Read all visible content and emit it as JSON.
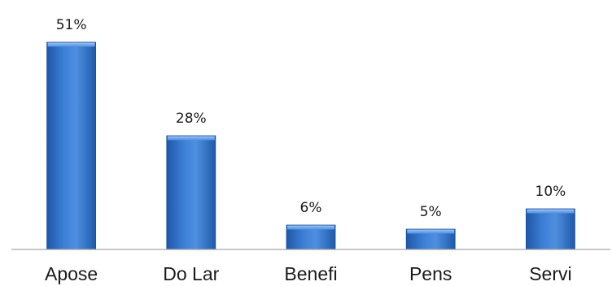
{
  "chart_data": {
    "type": "bar",
    "categories": [
      "Apose",
      "Do Lar",
      "Benefi",
      "Pens",
      "Servi"
    ],
    "values": [
      51,
      28,
      6,
      5,
      10
    ],
    "value_labels": [
      "51%",
      "28%",
      "6%",
      "5%",
      "10%"
    ],
    "unit": "%",
    "title": "",
    "xlabel": "",
    "ylabel": "",
    "ylim": [
      0,
      51
    ],
    "grid": false,
    "legend": "none",
    "colors": {
      "bar_top": "#6aa0e8",
      "bar_mid": "#2f6ec7",
      "bar_edge": "#1c4f9c",
      "axis": "#a6a6a6"
    }
  }
}
